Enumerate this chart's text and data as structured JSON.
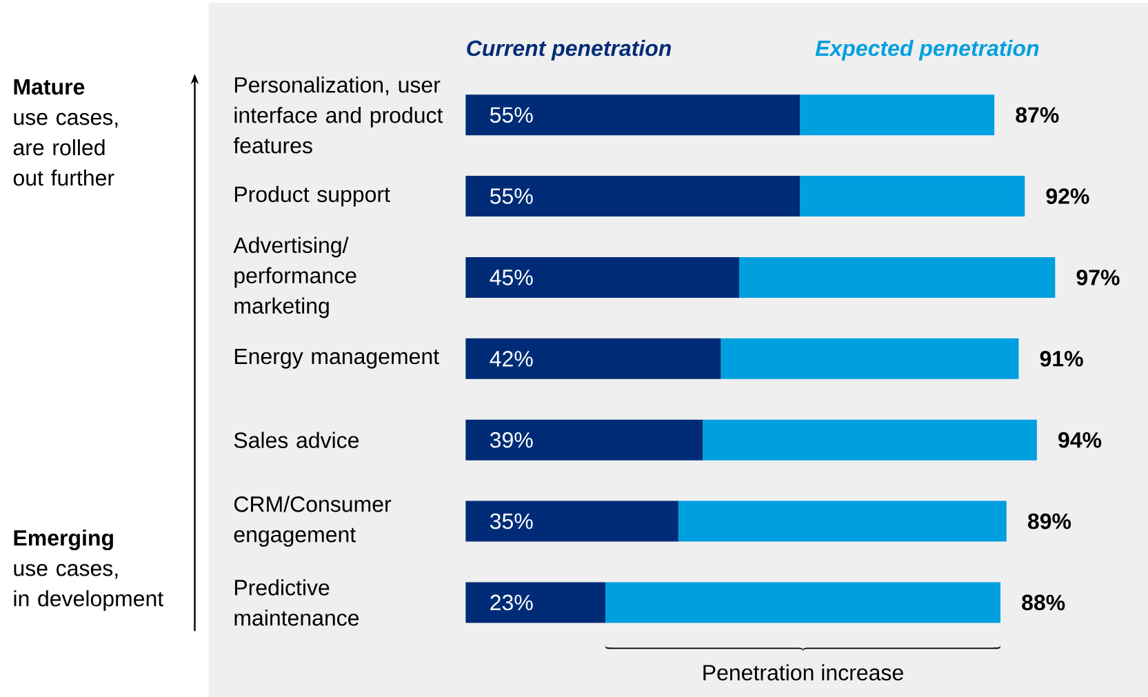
{
  "chart_data": {
    "type": "bar",
    "orientation": "horizontal",
    "stacked": true,
    "categories": [
      "Personalization, user interface and product features",
      "Product support",
      "Advertising/ performance marketing",
      "Energy management",
      "Sales advice",
      "CRM/Consumer engagement",
      "Predictive maintenance"
    ],
    "series": [
      {
        "name": "Current penetration",
        "color": "#002c77",
        "values": [
          55,
          55,
          45,
          42,
          39,
          35,
          23
        ],
        "value_labels": [
          "55%",
          "55%",
          "45%",
          "42%",
          "39%",
          "35%",
          "23%"
        ]
      },
      {
        "name": "Expected penetration",
        "color": "#009fe0",
        "values": [
          32,
          37,
          52,
          49,
          55,
          54,
          65
        ]
      }
    ],
    "totals": [
      "87%",
      "92%",
      "97%",
      "91%",
      "94%",
      "89%",
      "88%"
    ],
    "annotations": [
      "Mature",
      "use cases,",
      "are rolled out further",
      "Emerging",
      "use cases,",
      "in development",
      "Penetration increase"
    ]
  }
}
